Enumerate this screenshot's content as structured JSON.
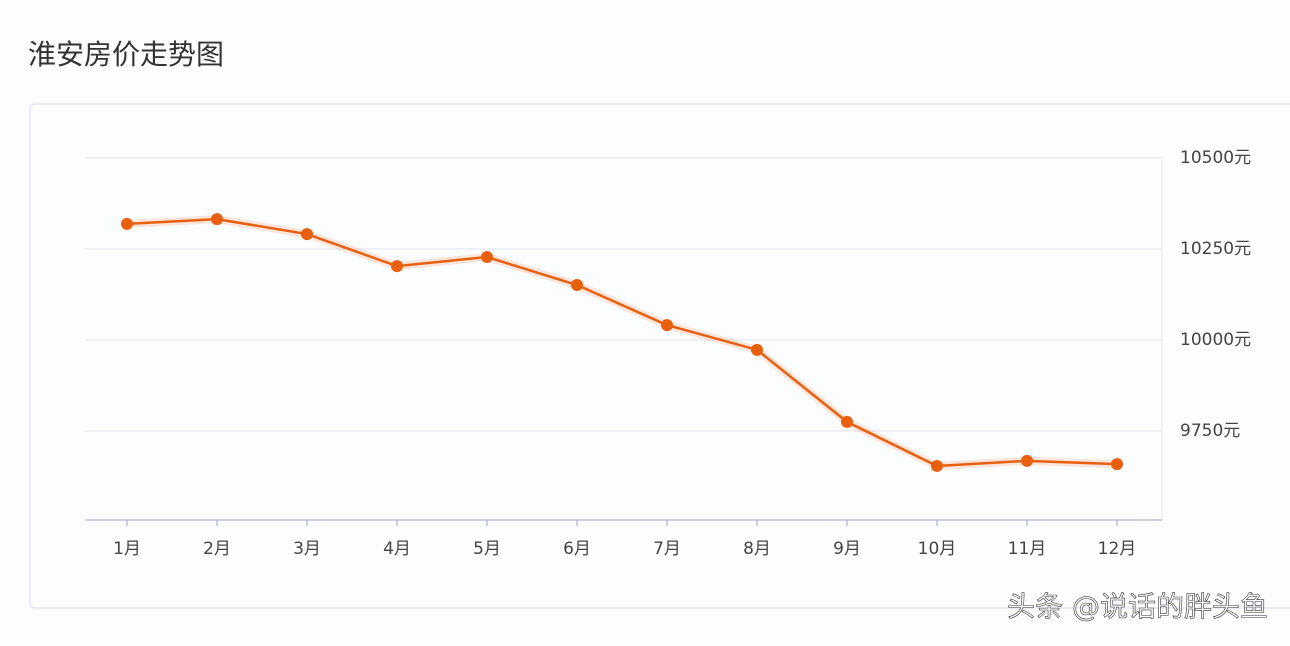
{
  "chart_data": {
    "type": "line",
    "title": "淮安房价走势图",
    "categories": [
      "1月",
      "2月",
      "3月",
      "4月",
      "5月",
      "6月",
      "7月",
      "8月",
      "9月",
      "10月",
      "11月",
      "12月"
    ],
    "series": [
      {
        "name": "淮安房价",
        "color": "#e8600f",
        "values": [
          10319,
          10332,
          10291,
          10203,
          10228,
          10151,
          10041,
          9973,
          9775,
          9654,
          9668,
          9659
        ]
      }
    ],
    "ylim": [
      9500,
      10500
    ],
    "yticks": [
      {
        "value": 9750,
        "label": "9750元"
      },
      {
        "value": 10000,
        "label": "10000元"
      },
      {
        "value": 10250,
        "label": "10250元"
      },
      {
        "value": 10500,
        "label": "10500元"
      }
    ],
    "grid": true,
    "watermark": "头条 @说话的胖头鱼"
  }
}
